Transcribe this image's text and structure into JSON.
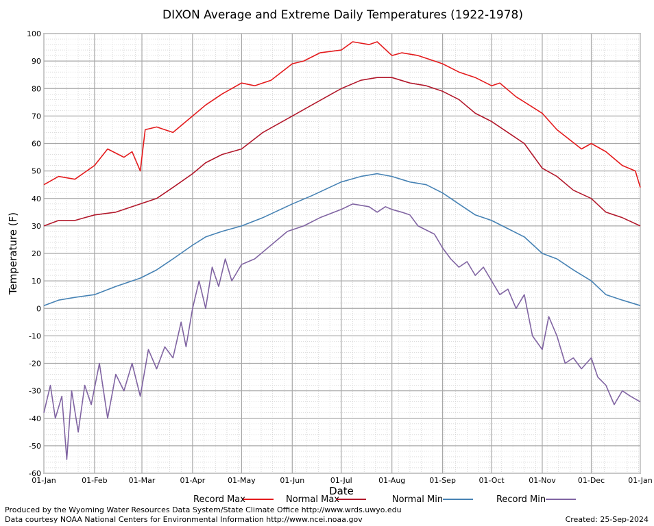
{
  "chart_data": {
    "type": "line",
    "title": "DIXON Average and Extreme Daily Temperatures (1922-1978)",
    "xlabel": "Date",
    "ylabel": "Temperature (F)",
    "ylim": [
      -60,
      100
    ],
    "yticks": [
      -60,
      -50,
      -40,
      -30,
      -20,
      -10,
      0,
      10,
      20,
      30,
      40,
      50,
      60,
      70,
      80,
      90,
      100
    ],
    "xlim_day": [
      1,
      366
    ],
    "xticks": [
      {
        "label": "01-Jan",
        "day": 1
      },
      {
        "label": "01-Feb",
        "day": 32
      },
      {
        "label": "01-Mar",
        "day": 61
      },
      {
        "label": "01-Apr",
        "day": 92
      },
      {
        "label": "01-May",
        "day": 122
      },
      {
        "label": "01-Jun",
        "day": 153
      },
      {
        "label": "01-Jul",
        "day": 183
      },
      {
        "label": "01-Aug",
        "day": 214
      },
      {
        "label": "01-Sep",
        "day": 245
      },
      {
        "label": "01-Oct",
        "day": 275
      },
      {
        "label": "01-Nov",
        "day": 306
      },
      {
        "label": "01-Dec",
        "day": 336
      },
      {
        "label": "01-Jan",
        "day": 366
      }
    ],
    "grid": true,
    "legend_position": "bottom",
    "series": [
      {
        "name": "Record Max",
        "color": "#e41a1c",
        "x": [
          1,
          10,
          20,
          32,
          40,
          50,
          55,
          60,
          63,
          70,
          80,
          92,
          100,
          110,
          122,
          130,
          140,
          153,
          160,
          170,
          183,
          190,
          200,
          205,
          214,
          220,
          230,
          245,
          255,
          265,
          275,
          280,
          290,
          306,
          315,
          330,
          336,
          345,
          355,
          363,
          366
        ],
        "y": [
          45,
          48,
          47,
          52,
          58,
          55,
          57,
          50,
          65,
          66,
          64,
          70,
          74,
          78,
          82,
          81,
          83,
          89,
          90,
          93,
          94,
          97,
          96,
          97,
          92,
          93,
          92,
          89,
          86,
          84,
          81,
          82,
          77,
          71,
          65,
          58,
          60,
          57,
          52,
          50,
          44
        ]
      },
      {
        "name": "Normal Max",
        "color": "#b2182b",
        "x": [
          1,
          10,
          20,
          32,
          45,
          60,
          70,
          80,
          92,
          100,
          110,
          122,
          135,
          153,
          165,
          183,
          195,
          205,
          214,
          225,
          235,
          245,
          255,
          265,
          275,
          285,
          295,
          306,
          315,
          325,
          336,
          345,
          355,
          366
        ],
        "y": [
          30,
          32,
          32,
          34,
          35,
          38,
          40,
          44,
          49,
          53,
          56,
          58,
          64,
          70,
          74,
          80,
          83,
          84,
          84,
          82,
          81,
          79,
          76,
          71,
          68,
          64,
          60,
          51,
          48,
          43,
          40,
          35,
          33,
          30
        ]
      },
      {
        "name": "Normal Min",
        "color": "#4682b4",
        "x": [
          1,
          10,
          20,
          32,
          45,
          60,
          70,
          80,
          92,
          100,
          110,
          122,
          135,
          153,
          165,
          183,
          195,
          205,
          214,
          225,
          235,
          245,
          255,
          265,
          275,
          285,
          295,
          306,
          315,
          325,
          336,
          345,
          355,
          366
        ],
        "y": [
          1,
          3,
          4,
          5,
          8,
          11,
          14,
          18,
          23,
          26,
          28,
          30,
          33,
          38,
          41,
          46,
          48,
          49,
          48,
          46,
          45,
          42,
          38,
          34,
          32,
          29,
          26,
          20,
          18,
          14,
          10,
          5,
          3,
          1
        ]
      },
      {
        "name": "Record Min",
        "color": "#8064a2",
        "x": [
          1,
          5,
          8,
          12,
          15,
          18,
          22,
          26,
          30,
          35,
          40,
          45,
          50,
          55,
          60,
          65,
          70,
          75,
          80,
          85,
          88,
          92,
          96,
          100,
          104,
          108,
          112,
          116,
          122,
          130,
          140,
          150,
          160,
          170,
          183,
          190,
          200,
          205,
          210,
          214,
          220,
          225,
          230,
          240,
          245,
          250,
          255,
          260,
          265,
          270,
          275,
          280,
          285,
          290,
          295,
          300,
          306,
          310,
          315,
          320,
          325,
          330,
          336,
          340,
          345,
          350,
          355,
          360,
          366
        ],
        "y": [
          -38,
          -28,
          -40,
          -32,
          -55,
          -30,
          -45,
          -28,
          -35,
          -20,
          -40,
          -24,
          -30,
          -20,
          -32,
          -15,
          -22,
          -14,
          -18,
          -5,
          -14,
          0,
          10,
          0,
          15,
          8,
          18,
          10,
          16,
          18,
          23,
          28,
          30,
          33,
          36,
          38,
          37,
          35,
          37,
          36,
          35,
          34,
          30,
          27,
          22,
          18,
          15,
          17,
          12,
          15,
          10,
          5,
          7,
          0,
          5,
          -10,
          -15,
          -3,
          -10,
          -20,
          -18,
          -22,
          -18,
          -25,
          -28,
          -35,
          -30,
          -32,
          -34
        ]
      }
    ]
  },
  "footer": {
    "line1": "Produced by the Wyoming Water Resources Data System/State Climate Office http://www.wrds.uwyo.edu",
    "line2": "Data courtesy NOAA National Centers for Environmental Information http://www.ncei.noaa.gov",
    "created": "Created: 25-Sep-2024"
  }
}
